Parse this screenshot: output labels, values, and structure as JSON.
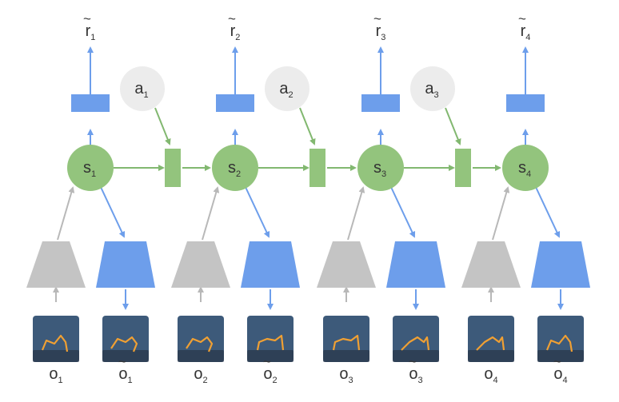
{
  "colors": {
    "green": "#93c47d",
    "green_arrow": "#82b870",
    "blue": "#6d9eeb",
    "gray": "#c4c4c4",
    "action_node": "#ececec",
    "frame_bg": "#3d5a7a",
    "frame_walker": "#f0a033"
  },
  "steps": [
    {
      "state": "s",
      "state_sub": "1",
      "reward": "r",
      "reward_sub": "1",
      "obs": "o",
      "obs_sub": "1",
      "recon": "o",
      "recon_sub": "1"
    },
    {
      "state": "s",
      "state_sub": "2",
      "reward": "r",
      "reward_sub": "2",
      "obs": "o",
      "obs_sub": "2",
      "recon": "o",
      "recon_sub": "2"
    },
    {
      "state": "s",
      "state_sub": "3",
      "reward": "r",
      "reward_sub": "3",
      "obs": "o",
      "obs_sub": "3",
      "recon": "o",
      "recon_sub": "3"
    },
    {
      "state": "s",
      "state_sub": "4",
      "reward": "r",
      "reward_sub": "4",
      "obs": "o",
      "obs_sub": "4",
      "recon": "o",
      "recon_sub": "4"
    }
  ],
  "actions": [
    {
      "label": "a",
      "sub": "1"
    },
    {
      "label": "a",
      "sub": "2"
    },
    {
      "label": "a",
      "sub": "3"
    }
  ],
  "tilde": "~"
}
